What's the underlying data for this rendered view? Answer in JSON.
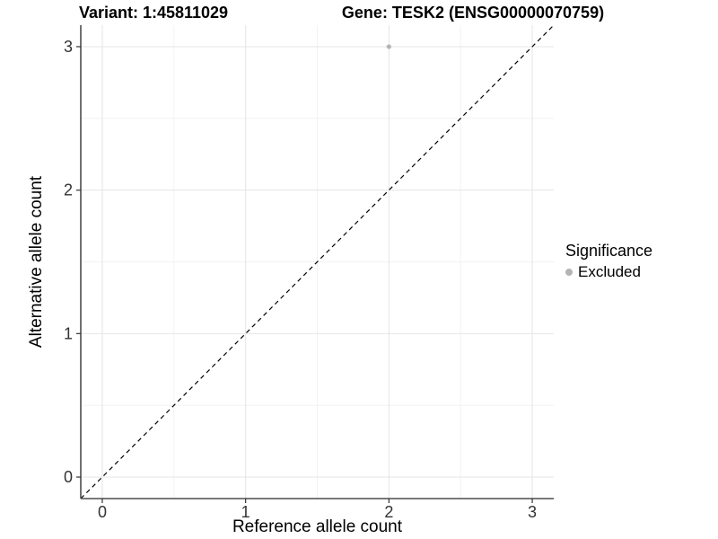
{
  "chart_data": {
    "type": "scatter",
    "titles": {
      "left": "Variant: 1:45811029",
      "right": "Gene: TESK2 (ENSG00000070759)"
    },
    "xlabel": "Reference allele count",
    "ylabel": "Alternative allele count",
    "xlim": [
      -0.15,
      3.15
    ],
    "ylim": [
      -0.15,
      3.15
    ],
    "xticks": [
      0,
      1,
      2,
      3
    ],
    "yticks": [
      0,
      1,
      2,
      3
    ],
    "minor_xticks": [
      0.5,
      1.5,
      2.5
    ],
    "minor_yticks": [
      0.5,
      1.5,
      2.5
    ],
    "grid": "major and minor gridlines, light gray on white panel",
    "reference_line": {
      "type": "identity",
      "equation": "y = x",
      "style": "dashed",
      "color": "#000000"
    },
    "series": [
      {
        "name": "Excluded",
        "color": "#b4b4b4",
        "points": [
          {
            "x": 2,
            "y": 3
          }
        ]
      }
    ],
    "legend": {
      "title": "Significance",
      "position": "right",
      "entries": [
        {
          "label": "Excluded",
          "marker": "circle",
          "color": "#b4b4b4"
        }
      ]
    }
  },
  "colors": {
    "background": "#ffffff",
    "grid_major": "#e5e5e5",
    "grid_minor": "#f2f2f2",
    "axis_line": "#4d4d4d",
    "tick": "#333333",
    "tick_label": "#333333",
    "axis_title_text": "#000000",
    "title_text": "#000000"
  }
}
